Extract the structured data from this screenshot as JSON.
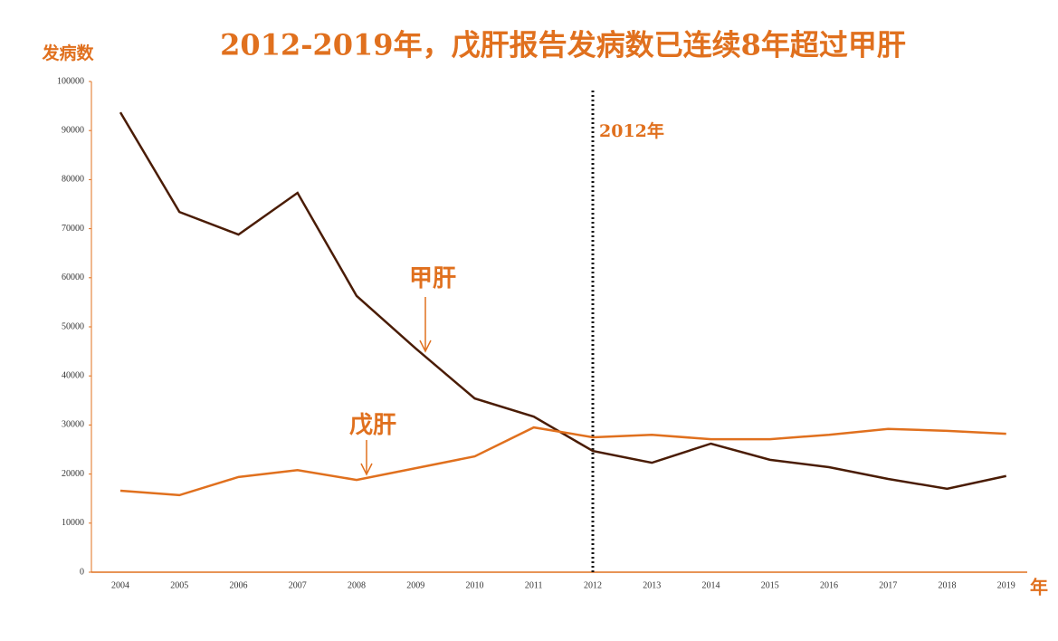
{
  "chart_data": {
    "type": "line",
    "title": "2012-2019年，戊肝报告发病数已连续8年超过甲肝",
    "y_label": "发病数",
    "x_label": "年",
    "categories": [
      "2004",
      "2005",
      "2006",
      "2007",
      "2008",
      "2009",
      "2010",
      "2011",
      "2012",
      "2013",
      "2014",
      "2015",
      "2016",
      "2017",
      "2018",
      "2019"
    ],
    "series": [
      {
        "name": "甲肝",
        "color": "#4a1c05",
        "values": [
          93700,
          73400,
          68800,
          77300,
          56300,
          45600,
          35400,
          31700,
          24700,
          22300,
          26200,
          22900,
          21400,
          19000,
          17000,
          19600
        ]
      },
      {
        "name": "戊肝",
        "color": "#e0701e",
        "values": [
          16600,
          15700,
          19400,
          20800,
          18800,
          21200,
          23600,
          29500,
          27500,
          28000,
          27100,
          27100,
          28000,
          29200,
          28800,
          28200
        ]
      }
    ],
    "ylim": [
      0,
      100000
    ],
    "yticks": [
      0,
      10000,
      20000,
      30000,
      40000,
      50000,
      60000,
      70000,
      80000,
      90000,
      100000
    ],
    "reference_line": {
      "x": "2012",
      "label": "2012年"
    },
    "grid": false
  }
}
